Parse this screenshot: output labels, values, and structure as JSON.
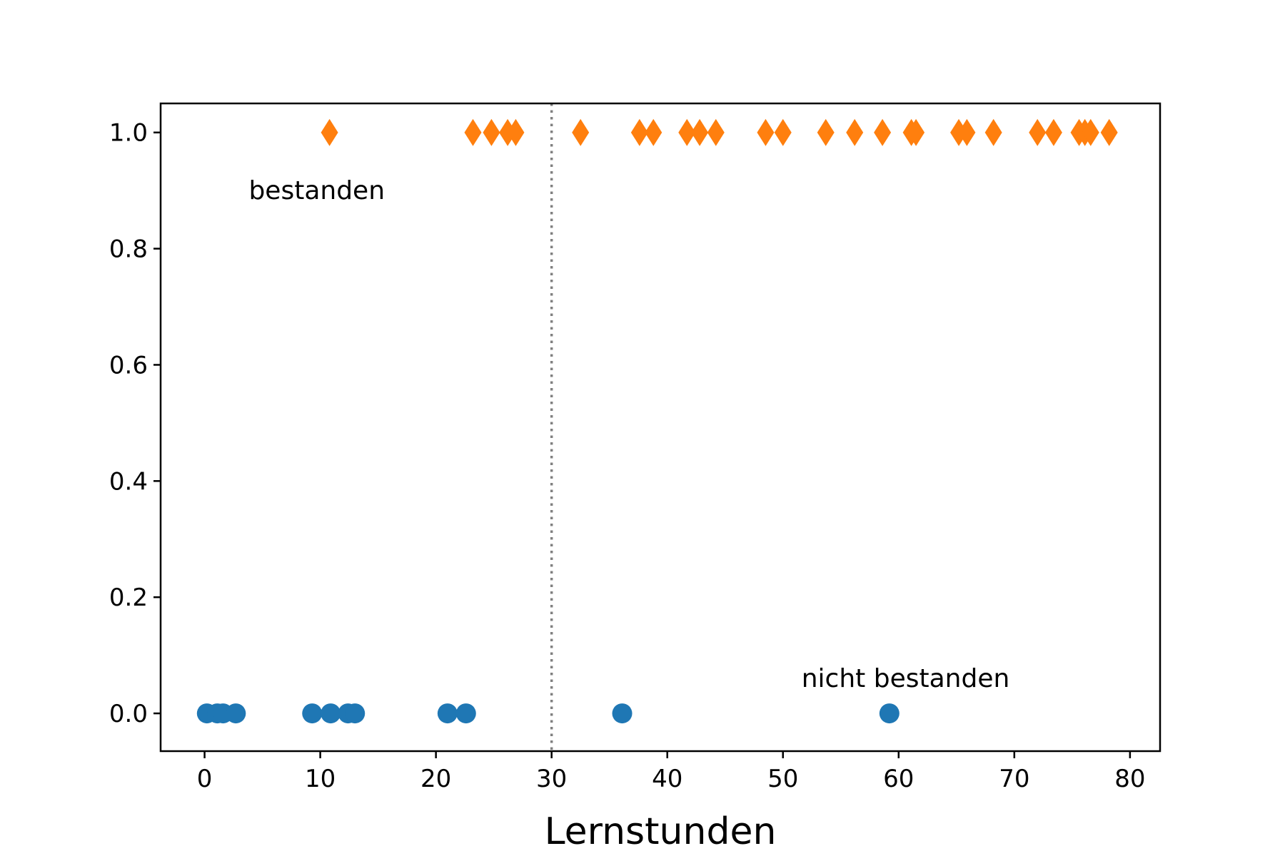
{
  "chart_data": {
    "type": "scatter",
    "title": "",
    "xlabel": "Lernstunden",
    "ylabel": "",
    "xlim": [
      -3.8,
      82.6
    ],
    "ylim": [
      -0.065,
      1.05
    ],
    "x_ticks": [
      0,
      10,
      20,
      30,
      40,
      50,
      60,
      70,
      80
    ],
    "x_tick_labels": [
      "0",
      "10",
      "20",
      "30",
      "40",
      "50",
      "60",
      "70",
      "80"
    ],
    "y_ticks": [
      0.0,
      0.2,
      0.4,
      0.6,
      0.8,
      1.0
    ],
    "y_tick_labels": [
      "0.0",
      "0.2",
      "0.4",
      "0.6",
      "0.8",
      "1.0"
    ],
    "grid": false,
    "threshold_line": {
      "x": 30,
      "color": "#808080",
      "style": "dotted"
    },
    "series": [
      {
        "marker": "circle",
        "color": "#1f77b4",
        "x": [
          0.2,
          1.1,
          1.6,
          2.7,
          9.3,
          10.9,
          12.4,
          13.0,
          21.0,
          22.6,
          36.1,
          59.2
        ],
        "y": [
          0,
          0,
          0,
          0,
          0,
          0,
          0,
          0,
          0,
          0,
          0,
          0
        ]
      },
      {
        "marker": "diamond",
        "color": "#ff7f0e",
        "x": [
          10.8,
          23.2,
          24.8,
          26.2,
          26.9,
          32.5,
          37.6,
          38.8,
          41.7,
          42.8,
          44.2,
          48.5,
          50.0,
          53.7,
          56.2,
          58.6,
          61.1,
          61.5,
          65.2,
          65.9,
          68.2,
          72.0,
          73.4,
          75.6,
          76.1,
          76.6,
          78.2
        ],
        "y": [
          1,
          1,
          1,
          1,
          1,
          1,
          1,
          1,
          1,
          1,
          1,
          1,
          1,
          1,
          1,
          1,
          1,
          1,
          1,
          1,
          1,
          1,
          1,
          1,
          1,
          1,
          1
        ]
      }
    ],
    "annotations": [
      {
        "text": "bestanden",
        "x": 9.7,
        "y": 0.9
      },
      {
        "text": "nicht bestanden",
        "x": 60.6,
        "y": 0.06
      }
    ]
  }
}
